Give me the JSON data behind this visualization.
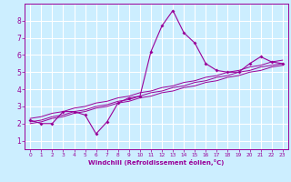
{
  "x": [
    0,
    1,
    2,
    3,
    4,
    5,
    6,
    7,
    8,
    9,
    10,
    11,
    12,
    13,
    14,
    15,
    16,
    17,
    18,
    19,
    20,
    21,
    22,
    23
  ],
  "y_main": [
    2.2,
    2.0,
    2.0,
    2.7,
    2.7,
    2.5,
    1.4,
    2.1,
    3.2,
    3.5,
    3.6,
    6.2,
    7.7,
    8.6,
    7.3,
    6.7,
    5.5,
    5.1,
    5.0,
    5.0,
    5.5,
    5.9,
    5.6,
    5.5
  ],
  "y_reg1": [
    2.1,
    2.2,
    2.4,
    2.5,
    2.7,
    2.8,
    3.0,
    3.1,
    3.3,
    3.4,
    3.6,
    3.8,
    3.9,
    4.1,
    4.2,
    4.4,
    4.5,
    4.7,
    4.8,
    5.0,
    5.1,
    5.3,
    5.4,
    5.5
  ],
  "y_reg2": [
    2.3,
    2.4,
    2.6,
    2.7,
    2.9,
    3.0,
    3.2,
    3.3,
    3.5,
    3.6,
    3.8,
    3.9,
    4.1,
    4.2,
    4.4,
    4.5,
    4.7,
    4.8,
    5.0,
    5.1,
    5.3,
    5.4,
    5.6,
    5.7
  ],
  "y_reg3": [
    2.0,
    2.1,
    2.3,
    2.4,
    2.6,
    2.7,
    2.9,
    3.0,
    3.2,
    3.3,
    3.5,
    3.6,
    3.8,
    3.9,
    4.1,
    4.2,
    4.4,
    4.5,
    4.7,
    4.8,
    5.0,
    5.1,
    5.3,
    5.4
  ],
  "color": "#990099",
  "bg_color": "#cceeff",
  "grid_color": "#ffffff",
  "xlabel": "Windchill (Refroidissement éolien,°C)",
  "ylim": [
    0.5,
    9.0
  ],
  "xlim": [
    -0.5,
    23.5
  ],
  "yticks": [
    1,
    2,
    3,
    4,
    5,
    6,
    7,
    8
  ],
  "xticks": [
    0,
    1,
    2,
    3,
    4,
    5,
    6,
    7,
    8,
    9,
    10,
    11,
    12,
    13,
    14,
    15,
    16,
    17,
    18,
    19,
    20,
    21,
    22,
    23
  ],
  "xlabel_fontsize": 5.0,
  "tick_fontsize_x": 4.2,
  "tick_fontsize_y": 5.5
}
